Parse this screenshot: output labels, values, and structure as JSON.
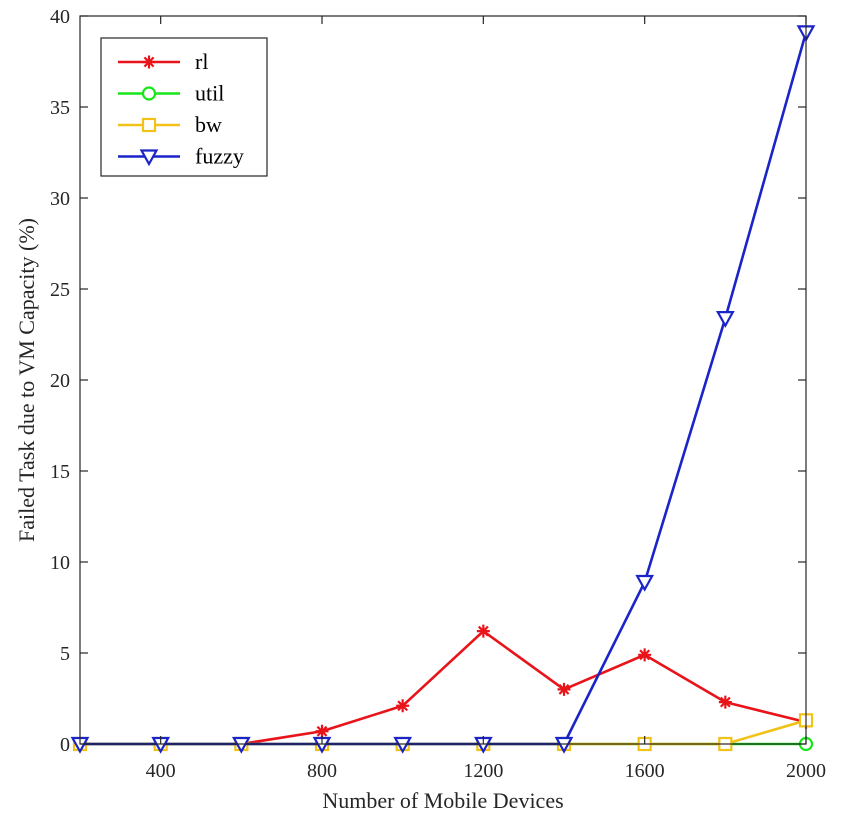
{
  "chart_data": {
    "type": "line",
    "xlabel": "Number of Mobile Devices",
    "ylabel": "Failed Task due to VM Capacity (%)",
    "x": [
      200,
      400,
      600,
      800,
      1000,
      1200,
      1400,
      1600,
      1800,
      2000
    ],
    "xlim": [
      200,
      2000
    ],
    "ylim": [
      0,
      40
    ],
    "xticks": [
      400,
      800,
      1200,
      1600,
      2000
    ],
    "yticks": [
      0,
      5,
      10,
      15,
      20,
      25,
      30,
      35,
      40
    ],
    "xtick_labels": [
      "400",
      "800",
      "1200",
      "1600",
      "2000"
    ],
    "ytick_labels": [
      "0",
      "5",
      "10",
      "15",
      "20",
      "25",
      "30",
      "35",
      "40"
    ],
    "grid": false,
    "legend_position": "top-left",
    "series": [
      {
        "name": "rl",
        "color": "#e8141a",
        "marker": "asterisk",
        "values": [
          0,
          0,
          0,
          0.7,
          2.1,
          6.2,
          3.0,
          4.9,
          2.3,
          1.2
        ]
      },
      {
        "name": "util",
        "color": "#19e619",
        "marker": "circle",
        "values": [
          0,
          0,
          0,
          0,
          0,
          0,
          0,
          0,
          0,
          0
        ]
      },
      {
        "name": "bw",
        "color": "#f2c218",
        "marker": "square",
        "values": [
          0,
          0,
          0,
          0,
          0,
          0,
          0,
          0,
          0,
          1.3
        ]
      },
      {
        "name": "fuzzy",
        "color": "#1a24c8",
        "marker": "triangle-down",
        "values": [
          0,
          0,
          0,
          0,
          0,
          0,
          0,
          8.9,
          23.4,
          39.1
        ]
      }
    ]
  }
}
